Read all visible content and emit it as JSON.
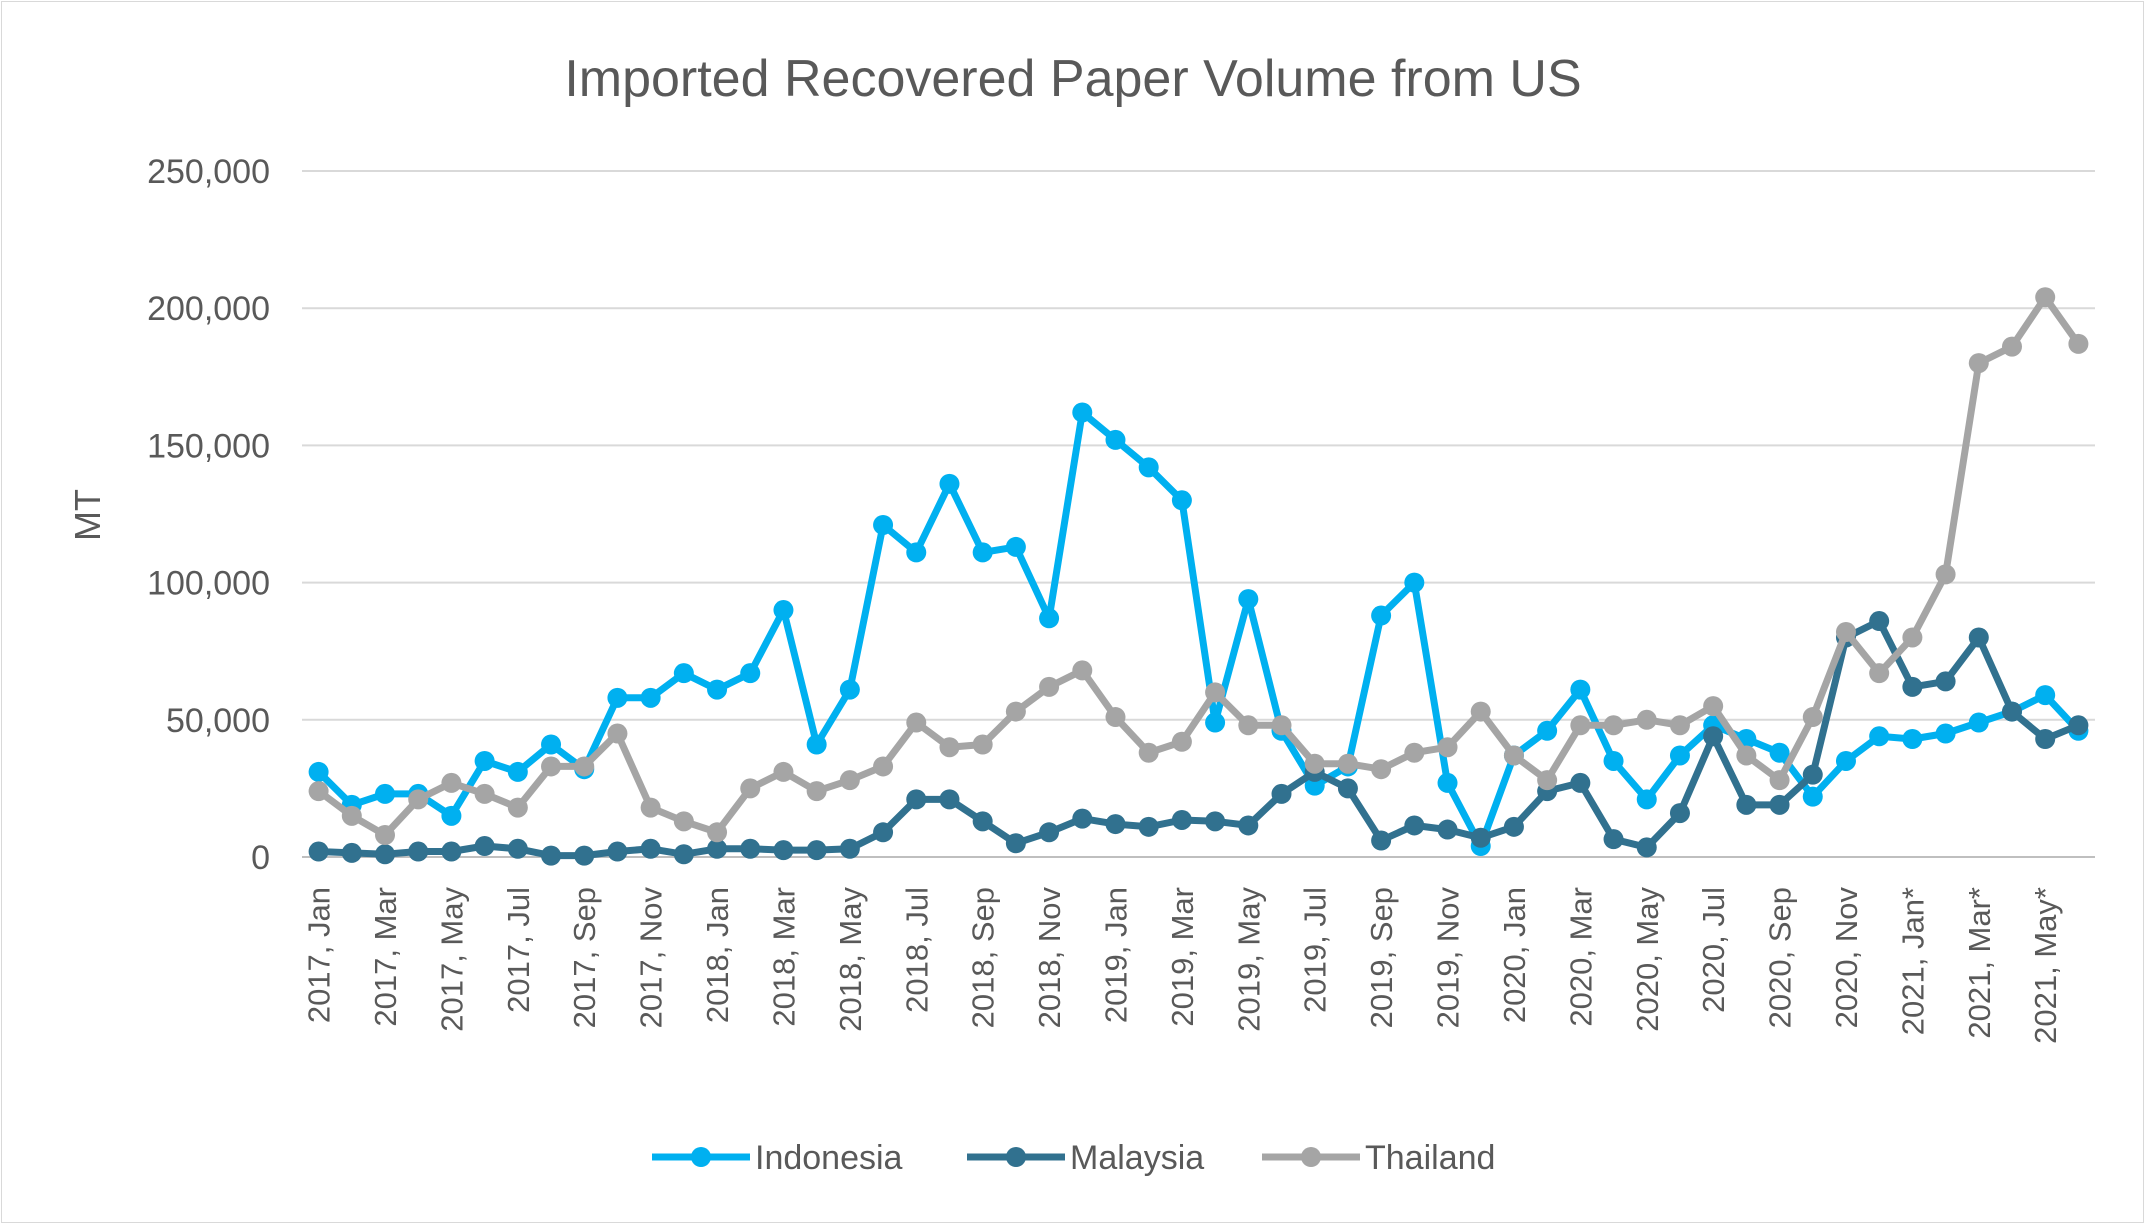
{
  "chart_data": {
    "type": "line",
    "title": "Imported Recovered Paper Volume from US",
    "xlabel": "",
    "ylabel": "MT",
    "ylim": [
      0,
      250000
    ],
    "yticks": [
      0,
      50000,
      100000,
      150000,
      200000,
      250000
    ],
    "ytick_labels": [
      "0",
      "50,000",
      "100,000",
      "150,000",
      "200,000",
      "250,000"
    ],
    "grid": true,
    "legend_position": "bottom",
    "categories": [
      "2017, Jan",
      "2017, Feb",
      "2017, Mar",
      "2017, Apr",
      "2017, May",
      "2017, Jun",
      "2017, Jul",
      "2017, Aug",
      "2017, Sep",
      "2017, Oct",
      "2017, Nov",
      "2017, Dec",
      "2018, Jan",
      "2018, Feb",
      "2018, Mar",
      "2018, Apr",
      "2018, May",
      "2018, Jun",
      "2018, Jul",
      "2018, Aug",
      "2018, Sep",
      "2018, Oct",
      "2018, Nov",
      "2018, Dec",
      "2019, Jan",
      "2019, Feb",
      "2019, Mar",
      "2019, Apr",
      "2019, May",
      "2019, Jun",
      "2019, Jul",
      "2019, Aug",
      "2019, Sep",
      "2019, Oct",
      "2019, Nov",
      "2019, Dec",
      "2020, Jan",
      "2020, Feb",
      "2020, Mar",
      "2020, Apr",
      "2020, May",
      "2020, Jun",
      "2020, Jul",
      "2020, Aug",
      "2020, Sep",
      "2020, Oct",
      "2020, Nov",
      "2020, Dec",
      "2021, Jan*",
      "2021, Feb*",
      "2021, Mar*",
      "2021, Apr*",
      "2021, May*",
      "2021, Jun*"
    ],
    "visible_tick_labels": [
      "2017, Jan",
      "2017, Mar",
      "2017, May",
      "2017, Jul",
      "2017, Sep",
      "2017, Nov",
      "2018, Jan",
      "2018, Mar",
      "2018, May",
      "2018, Jul",
      "2018, Sep",
      "2018, Nov",
      "2019, Jan",
      "2019, Mar",
      "2019, May",
      "2019, Jul",
      "2019, Sep",
      "2019, Nov",
      "2020, Jan",
      "2020, Mar",
      "2020, May",
      "2020, Jul",
      "2020, Sep",
      "2020, Nov",
      "2021, Jan*",
      "2021, Mar*",
      "2021, May*"
    ],
    "series": [
      {
        "name": "Indonesia",
        "color": "#00b0f0",
        "values": [
          31000,
          19000,
          23000,
          23000,
          15000,
          35000,
          31000,
          41000,
          32000,
          58000,
          58000,
          67000,
          61000,
          67000,
          90000,
          41000,
          61000,
          121000,
          111000,
          136000,
          111000,
          113000,
          87000,
          162000,
          152000,
          142000,
          130000,
          49000,
          94000,
          46000,
          26000,
          33000,
          88000,
          100000,
          27000,
          4000,
          37000,
          46000,
          61000,
          35000,
          21000,
          37000,
          48000,
          43000,
          38000,
          22000,
          35000,
          44000,
          43000,
          45000,
          49000,
          53000,
          59000,
          46000
        ]
      },
      {
        "name": "Malaysia",
        "color": "#31718f",
        "values": [
          2000,
          1500,
          1000,
          2000,
          2000,
          4000,
          3000,
          500,
          500,
          2000,
          3000,
          1000,
          3000,
          3000,
          2500,
          2500,
          3000,
          9000,
          21000,
          21000,
          13000,
          5000,
          9000,
          14000,
          12000,
          11000,
          13500,
          13000,
          11500,
          23000,
          31000,
          25000,
          6000,
          11500,
          10000,
          7000,
          11000,
          24000,
          27000,
          6500,
          3500,
          16000,
          44000,
          19000,
          19000,
          30000,
          80000,
          86000,
          62000,
          64000,
          80000,
          53000,
          43000,
          48000
        ]
      },
      {
        "name": "Thailand",
        "color": "#a5a5a5",
        "values": [
          24000,
          15000,
          8000,
          21000,
          27000,
          23000,
          18000,
          33000,
          33000,
          45000,
          18000,
          13000,
          9000,
          25000,
          31000,
          24000,
          28000,
          33000,
          49000,
          40000,
          41000,
          53000,
          62000,
          68000,
          51000,
          38000,
          42000,
          60000,
          48000,
          48000,
          34000,
          34000,
          32000,
          38000,
          40000,
          53000,
          37000,
          28000,
          48000,
          48000,
          50000,
          48000,
          55000,
          37000,
          28000,
          51000,
          82000,
          67000,
          80000,
          103000,
          180000,
          186000,
          204000,
          187000
        ]
      }
    ]
  }
}
